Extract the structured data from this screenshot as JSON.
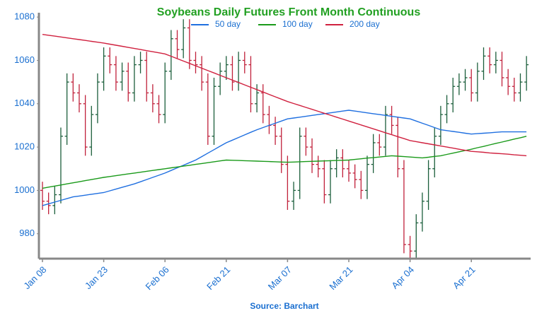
{
  "chart_data": {
    "type": "ohlc",
    "title": "Soybeans Daily Futures Front Month Continuous",
    "source": "Source: Barchart",
    "categories": [
      "Jan 08",
      null,
      null,
      null,
      null,
      null,
      null,
      null,
      null,
      null,
      "Jan 23",
      null,
      null,
      null,
      null,
      null,
      null,
      null,
      null,
      null,
      "Feb 06",
      null,
      null,
      null,
      null,
      null,
      null,
      null,
      null,
      null,
      "Feb 21",
      null,
      null,
      null,
      null,
      null,
      null,
      null,
      null,
      null,
      "Mar 07",
      null,
      null,
      null,
      null,
      null,
      null,
      null,
      null,
      null,
      "Mar 21",
      null,
      null,
      null,
      null,
      null,
      null,
      null,
      null,
      null,
      "Apr 04",
      null,
      null,
      null,
      null,
      null,
      null,
      null,
      null,
      null,
      "Apr 21",
      null,
      null,
      null,
      null,
      null,
      null,
      null,
      null,
      null
    ],
    "open": [
      1000,
      995,
      993,
      998,
      1025,
      1050,
      1045,
      1040,
      1020,
      1035,
      1050,
      1062,
      1058,
      1050,
      1055,
      1045,
      1058,
      1060,
      1045,
      1040,
      1035,
      1055,
      1070,
      1065,
      1075,
      1060,
      1058,
      1050,
      1025,
      1048,
      1055,
      1058,
      1050,
      1060,
      1058,
      1040,
      1045,
      1035,
      1030,
      1025,
      1012,
      995,
      1000,
      1025,
      1020,
      1012,
      1010,
      998,
      1010,
      1015,
      1010,
      1008,
      1005,
      1000,
      1012,
      1022,
      1020,
      1035,
      1030,
      1010,
      975,
      972,
      985,
      995,
      1010,
      1025,
      1035,
      1040,
      1048,
      1050,
      1052,
      1045,
      1055,
      1062,
      1058,
      1060,
      1052,
      1048,
      1045,
      1050
    ],
    "high": [
      1004,
      999,
      1002,
      1029,
      1054,
      1054,
      1049,
      1044,
      1039,
      1054,
      1066,
      1066,
      1062,
      1059,
      1059,
      1062,
      1064,
      1064,
      1049,
      1044,
      1059,
      1074,
      1074,
      1079,
      1079,
      1064,
      1062,
      1054,
      1052,
      1059,
      1062,
      1062,
      1064,
      1064,
      1062,
      1049,
      1049,
      1039,
      1034,
      1029,
      1016,
      1004,
      1029,
      1029,
      1024,
      1016,
      1014,
      1014,
      1019,
      1019,
      1014,
      1012,
      1009,
      1016,
      1026,
      1026,
      1039,
      1039,
      1034,
      1014,
      979,
      989,
      999,
      1014,
      1029,
      1039,
      1044,
      1052,
      1054,
      1056,
      1056,
      1059,
      1066,
      1066,
      1064,
      1064,
      1056,
      1052,
      1054,
      1062
    ],
    "low": [
      991,
      989,
      989,
      994,
      1021,
      1041,
      1036,
      1016,
      1016,
      1031,
      1046,
      1054,
      1046,
      1046,
      1041,
      1041,
      1054,
      1041,
      1036,
      1031,
      1031,
      1051,
      1061,
      1061,
      1056,
      1054,
      1046,
      1021,
      1021,
      1044,
      1051,
      1046,
      1046,
      1054,
      1036,
      1036,
      1031,
      1026,
      1021,
      1008,
      991,
      991,
      996,
      1016,
      1008,
      1006,
      994,
      994,
      1006,
      1006,
      1004,
      1001,
      996,
      996,
      1008,
      1016,
      1016,
      1026,
      1006,
      971,
      968,
      968,
      981,
      991,
      1006,
      1021,
      1031,
      1036,
      1044,
      1046,
      1041,
      1041,
      1051,
      1054,
      1054,
      1048,
      1044,
      1041,
      1041,
      1046
    ],
    "close": [
      995,
      993,
      998,
      1025,
      1050,
      1045,
      1040,
      1020,
      1035,
      1050,
      1062,
      1058,
      1050,
      1055,
      1045,
      1058,
      1060,
      1045,
      1040,
      1035,
      1055,
      1070,
      1065,
      1075,
      1060,
      1058,
      1050,
      1025,
      1048,
      1055,
      1058,
      1050,
      1060,
      1058,
      1040,
      1045,
      1035,
      1030,
      1025,
      1012,
      995,
      1000,
      1025,
      1020,
      1012,
      1010,
      998,
      1010,
      1015,
      1010,
      1008,
      1005,
      1000,
      1012,
      1022,
      1020,
      1035,
      1030,
      1010,
      975,
      972,
      985,
      995,
      1010,
      1025,
      1035,
      1040,
      1048,
      1050,
      1052,
      1045,
      1055,
      1062,
      1058,
      1060,
      1052,
      1048,
      1045,
      1050,
      1058
    ],
    "up_color": "#1b5e3b",
    "down_color": "#c0213b",
    "series": [
      {
        "name": "50 day",
        "color": "#1f6fe0",
        "values": [
          993,
          993.8,
          994.6,
          995.4,
          996.2,
          997,
          997.4,
          997.8,
          998.2,
          998.6,
          999,
          999.8,
          1000.6,
          1001.4,
          1002.2,
          1003,
          1004,
          1005,
          1006,
          1007,
          1008,
          1009.2,
          1010.4,
          1011.6,
          1012.8,
          1014,
          1015.6,
          1017.2,
          1018.8,
          1020.4,
          1022,
          1023.2,
          1024.4,
          1025.6,
          1026.8,
          1028,
          1029,
          1030,
          1031,
          1032,
          1033,
          1033.4,
          1033.8,
          1034.2,
          1034.6,
          1035,
          1035.4,
          1035.8,
          1036.2,
          1036.6,
          1037,
          1036.6,
          1036.2,
          1035.8,
          1035.4,
          1035,
          1034.6,
          1034.2,
          1033.8,
          1033.4,
          1033,
          1032,
          1031,
          1030,
          1029,
          1028,
          1027.6,
          1027.2,
          1026.8,
          1026.4,
          1026,
          1026.2,
          1026.4,
          1026.6,
          1026.8,
          1027,
          1027,
          1027,
          1027,
          1027
        ]
      },
      {
        "name": "100 day",
        "color": "#1a9a1a",
        "values": [
          1001,
          1001.5,
          1002,
          1002.5,
          1003,
          1003.5,
          1004,
          1004.5,
          1005,
          1005.5,
          1006,
          1006.4,
          1006.8,
          1007.2,
          1007.6,
          1008,
          1008.4,
          1008.8,
          1009.2,
          1009.6,
          1010,
          1010.4,
          1010.8,
          1011.2,
          1011.6,
          1012,
          1012.4,
          1012.8,
          1013.2,
          1013.6,
          1014,
          1013.9,
          1013.8,
          1013.7,
          1013.6,
          1013.5,
          1013.4,
          1013.3,
          1013.2,
          1013.1,
          1013,
          1013.1,
          1013.2,
          1013.3,
          1013.4,
          1013.5,
          1013.6,
          1013.7,
          1013.8,
          1013.9,
          1014,
          1014.3,
          1014.6,
          1014.9,
          1015.1,
          1015.4,
          1015.7,
          1016,
          1015.8,
          1015.6,
          1015.4,
          1015.2,
          1015,
          1015.3,
          1015.7,
          1016,
          1016.6,
          1017.2,
          1017.8,
          1018.4,
          1019,
          1019.7,
          1020.3,
          1021,
          1021.7,
          1022.3,
          1023,
          1023.7,
          1024.3,
          1025
        ]
      },
      {
        "name": "200 day",
        "color": "#d0213f",
        "values": [
          1072,
          1071.6,
          1071.2,
          1070.8,
          1070.4,
          1070,
          1069.6,
          1069.2,
          1068.8,
          1068.4,
          1068,
          1067.5,
          1067,
          1066.5,
          1066,
          1065.5,
          1065,
          1064.5,
          1064,
          1063.5,
          1063,
          1061.9,
          1060.8,
          1059.7,
          1058.6,
          1057.5,
          1056.4,
          1055.3,
          1054.2,
          1053.1,
          1052,
          1050.9,
          1049.8,
          1048.7,
          1047.6,
          1046.5,
          1045.4,
          1044.3,
          1043.2,
          1042.1,
          1041,
          1040.1,
          1039.2,
          1038.3,
          1037.4,
          1036.5,
          1035.6,
          1034.7,
          1033.8,
          1032.9,
          1032,
          1031.1,
          1030.2,
          1029.3,
          1028.4,
          1027.5,
          1026.6,
          1025.7,
          1024.8,
          1023.9,
          1023,
          1022.5,
          1022,
          1021.5,
          1021,
          1020.5,
          1020,
          1019.5,
          1019,
          1018.5,
          1018,
          1017.8,
          1017.6,
          1017.3,
          1017.1,
          1016.9,
          1016.7,
          1016.4,
          1016.2,
          1016
        ]
      }
    ],
    "ylim": [
      968.5,
      1082
    ],
    "yticks": [
      980,
      1000,
      1020,
      1040,
      1060,
      1080
    ],
    "grid": false,
    "legend": "top"
  }
}
